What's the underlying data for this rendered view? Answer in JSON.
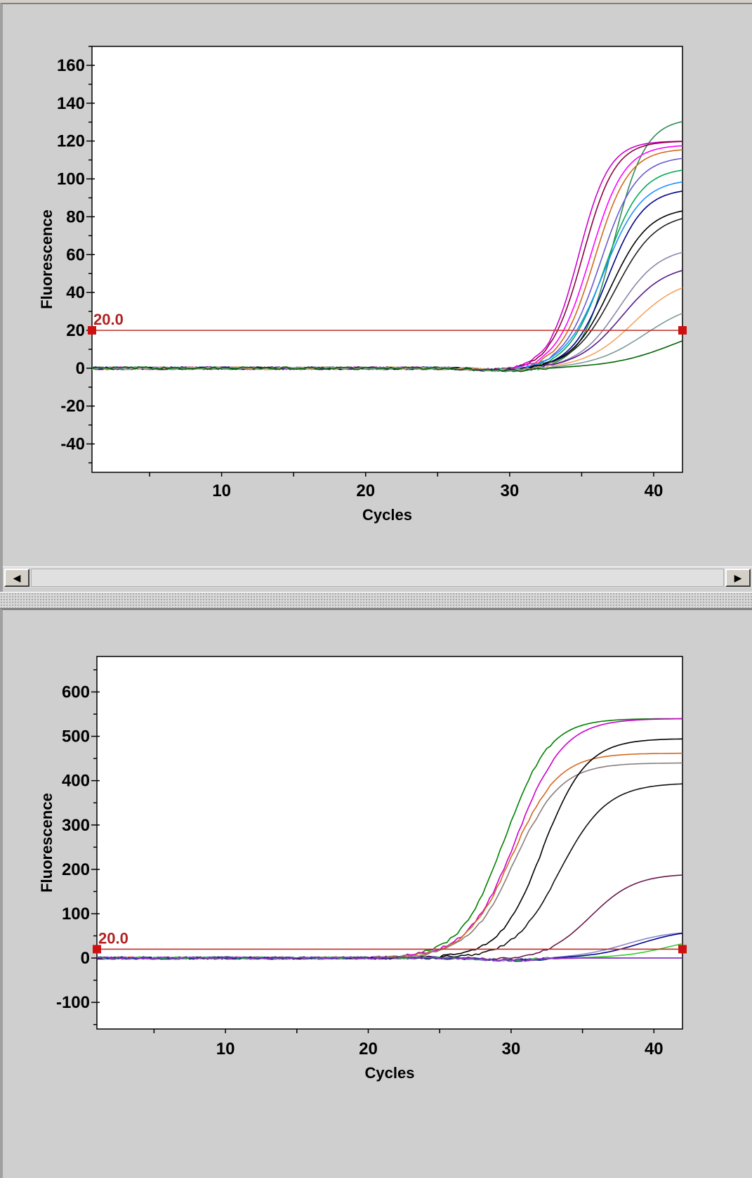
{
  "colors": {
    "threshold": "#c0302a",
    "background": "#cfcfcf",
    "plot_bg": "#ffffff"
  },
  "scrollbar": {
    "left_arrow_icon": "◀",
    "right_arrow_icon": "▶"
  },
  "chart_data": [
    {
      "type": "line",
      "xlabel": "Cycles",
      "ylabel": "Fluorescence",
      "xlim": [
        1,
        42
      ],
      "ylim": [
        -55,
        170
      ],
      "xticks": [
        10,
        20,
        30,
        40
      ],
      "yticks": [
        -40,
        -20,
        0,
        20,
        40,
        60,
        80,
        100,
        120,
        140,
        160
      ],
      "threshold": {
        "value": 20,
        "label": "20.0"
      },
      "grid": false,
      "series": [
        {
          "color": "#2e8b57",
          "ct": 37.2,
          "plateau": 132,
          "k": 0.9
        },
        {
          "color": "#cc00cc",
          "ct": 34.8,
          "plateau": 120,
          "k": 0.95
        },
        {
          "color": "#8b0040",
          "ct": 35.1,
          "plateau": 120,
          "k": 0.9
        },
        {
          "color": "#ff00ff",
          "ct": 35.6,
          "plateau": 118,
          "k": 0.85
        },
        {
          "color": "#d2691e",
          "ct": 35.9,
          "plateau": 116,
          "k": 0.85
        },
        {
          "color": "#6a5acd",
          "ct": 36.3,
          "plateau": 112,
          "k": 0.8
        },
        {
          "color": "#00aa55",
          "ct": 36.6,
          "plateau": 106,
          "k": 0.8
        },
        {
          "color": "#00008b",
          "ct": 36.8,
          "plateau": 95,
          "k": 0.8
        },
        {
          "color": "#1e90ff",
          "ct": 36.5,
          "plateau": 100,
          "k": 0.75
        },
        {
          "color": "#000000",
          "ct": 37.0,
          "plateau": 85,
          "k": 0.75
        },
        {
          "color": "#202020",
          "ct": 37.3,
          "plateau": 82,
          "k": 0.7
        },
        {
          "color": "#8888aa",
          "ct": 37.6,
          "plateau": 64,
          "k": 0.7
        },
        {
          "color": "#551a8b",
          "ct": 37.8,
          "plateau": 55,
          "k": 0.65
        },
        {
          "color": "#f4a460",
          "ct": 38.6,
          "plateau": 48,
          "k": 0.6
        },
        {
          "color": "#7a9a9a",
          "ct": 39.4,
          "plateau": 36,
          "k": 0.55
        },
        {
          "color": "#006400",
          "ct": 41.5,
          "plateau": 26,
          "k": 0.45
        }
      ]
    },
    {
      "type": "line",
      "xlabel": "Cycles",
      "ylabel": "Fluorescence",
      "xlim": [
        1,
        42
      ],
      "ylim": [
        -160,
        680
      ],
      "xticks": [
        10,
        20,
        30,
        40
      ],
      "yticks": [
        -100,
        0,
        100,
        200,
        300,
        400,
        500,
        600
      ],
      "threshold": {
        "value": 20,
        "label": "20.0"
      },
      "grid": false,
      "series": [
        {
          "color": "#008000",
          "ct": 29.5,
          "plateau": 540,
          "k": 0.65
        },
        {
          "color": "#cc00cc",
          "ct": 30.3,
          "plateau": 540,
          "k": 0.6
        },
        {
          "color": "#d2691e",
          "ct": 30.0,
          "plateau": 462,
          "k": 0.62
        },
        {
          "color": "#8b7d7d",
          "ct": 30.2,
          "plateau": 440,
          "k": 0.62
        },
        {
          "color": "#000000",
          "ct": 32.2,
          "plateau": 495,
          "k": 0.65
        },
        {
          "color": "#101010",
          "ct": 33.4,
          "plateau": 395,
          "k": 0.6
        },
        {
          "color": "#6b1a4a",
          "ct": 35.6,
          "plateau": 190,
          "k": 0.65
        },
        {
          "color": "#8888cc",
          "ct": 38.0,
          "plateau": 62,
          "k": 0.6
        },
        {
          "color": "#00008b",
          "ct": 39.0,
          "plateau": 65,
          "k": 0.6
        },
        {
          "color": "#32cd32",
          "ct": 41.0,
          "plateau": 50,
          "k": 0.6
        },
        {
          "color": "#1e3c8b",
          "ct": 99,
          "plateau": 0,
          "k": 0.5
        },
        {
          "color": "#9932cc",
          "ct": 99,
          "plateau": 0,
          "k": 0.5
        }
      ]
    }
  ]
}
